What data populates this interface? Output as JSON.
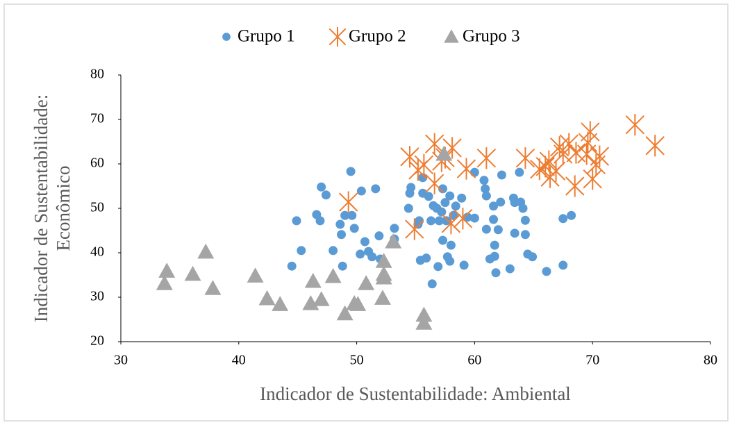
{
  "chart_data": {
    "type": "scatter",
    "xlabel": "Indicador de Sustentabilidade: Ambiental",
    "ylabel": [
      "Indicador de Sustentabilidade:",
      "Econômico"
    ],
    "xlim": [
      30,
      80
    ],
    "xticks": [
      30,
      40,
      50,
      60,
      70,
      80
    ],
    "ylim": [
      20,
      80
    ],
    "yticks": [
      20,
      30,
      40,
      50,
      60,
      70,
      80
    ],
    "grid": false,
    "legend": "top",
    "series": [
      {
        "name": "Grupo 1",
        "color": "#5b9bd5",
        "marker": "circle",
        "x": [
          44.5,
          44.9,
          45.3,
          46.6,
          46.9,
          47.0,
          47.4,
          48.0,
          48.6,
          48.7,
          48.8,
          49.0,
          49.5,
          49.6,
          49.8,
          50.3,
          50.4,
          50.7,
          51.0,
          51.3,
          51.6,
          51.9,
          52.0,
          53.2,
          53.2,
          54.4,
          54.6,
          54.5,
          55.2,
          55.3,
          55.4,
          55.6,
          55.6,
          55.9,
          56.1,
          56.3,
          56.4,
          56.5,
          56.8,
          56.9,
          57.0,
          57.2,
          57.3,
          57.3,
          57.5,
          57.6,
          57.7,
          57.9,
          57.9,
          58.0,
          58.2,
          58.4,
          58.9,
          59.1,
          59.4,
          60.0,
          60.0,
          60.8,
          60.9,
          61.0,
          61.0,
          61.3,
          61.6,
          61.6,
          61.7,
          61.7,
          61.8,
          62.0,
          62.2,
          62.3,
          63.0,
          63.3,
          63.4,
          63.4,
          63.8,
          63.9,
          64.1,
          64.3,
          64.3,
          64.5,
          64.9,
          66.1,
          67.5,
          67.5,
          68.2
        ],
        "values": [
          37.0,
          47.2,
          40.5,
          48.6,
          47.2,
          54.8,
          53.0,
          40.5,
          46.4,
          44.1,
          37.0,
          48.4,
          58.3,
          48.4,
          45.5,
          39.7,
          53.9,
          42.5,
          40.3,
          39.1,
          54.4,
          43.8,
          38.6,
          43.1,
          45.5,
          50.0,
          54.7,
          53.4,
          46.4,
          47.2,
          38.3,
          56.9,
          53.4,
          38.8,
          52.7,
          47.2,
          33.0,
          50.6,
          50.0,
          36.9,
          47.2,
          49.2,
          42.8,
          54.4,
          51.3,
          47.2,
          39.1,
          52.8,
          38.1,
          41.7,
          48.4,
          50.5,
          52.3,
          37.2,
          48.0,
          58.1,
          47.8,
          56.3,
          54.4,
          52.8,
          45.3,
          38.6,
          50.5,
          47.5,
          41.7,
          39.2,
          35.5,
          45.2,
          51.4,
          57.5,
          36.4,
          52.3,
          51.3,
          44.4,
          58.1,
          51.4,
          50.0,
          47.3,
          44.1,
          39.7,
          39.1,
          35.8,
          37.2,
          47.7,
          48.4
        ]
      },
      {
        "name": "Grupo 2",
        "color": "#ed7d31",
        "marker": "star",
        "x": [
          49.3,
          54.5,
          54.9,
          55.2,
          55.7,
          56.6,
          56.6,
          57.2,
          57.5,
          58.0,
          58.1,
          59.0,
          59.3,
          61.0,
          64.3,
          65.5,
          66.0,
          66.3,
          66.4,
          66.9,
          67.2,
          67.5,
          68.0,
          68.5,
          68.6,
          69.5,
          69.6,
          69.8,
          70.0,
          70.3,
          70.6,
          73.6,
          75.3
        ],
        "values": [
          51.4,
          61.6,
          45.3,
          58.6,
          59.8,
          64.5,
          55.6,
          60.6,
          61.4,
          46.6,
          63.6,
          47.7,
          58.9,
          61.3,
          61.3,
          58.8,
          59.4,
          60.6,
          57.0,
          58.4,
          63.8,
          62.2,
          64.5,
          55.0,
          62.5,
          62.2,
          64.8,
          67.2,
          56.6,
          59.8,
          61.7,
          68.8,
          64.1
        ]
      },
      {
        "name": "Grupo 3",
        "color": "#a5a5a5",
        "marker": "triangle",
        "x": [
          33.7,
          33.9,
          36.1,
          37.2,
          37.8,
          41.4,
          42.4,
          43.5,
          46.1,
          46.3,
          47.0,
          48.0,
          49.0,
          49.8,
          50.1,
          50.8,
          52.2,
          52.3,
          52.3,
          52.3,
          53.1,
          55.7,
          55.7,
          57.4
        ],
        "values": [
          33.1,
          35.9,
          35.2,
          40.2,
          32.0,
          34.8,
          29.7,
          28.4,
          28.6,
          33.6,
          29.5,
          34.7,
          26.3,
          28.6,
          28.4,
          33.1,
          29.8,
          38.1,
          35.2,
          34.4,
          42.5,
          26.0,
          24.2,
          62.2
        ]
      }
    ]
  }
}
